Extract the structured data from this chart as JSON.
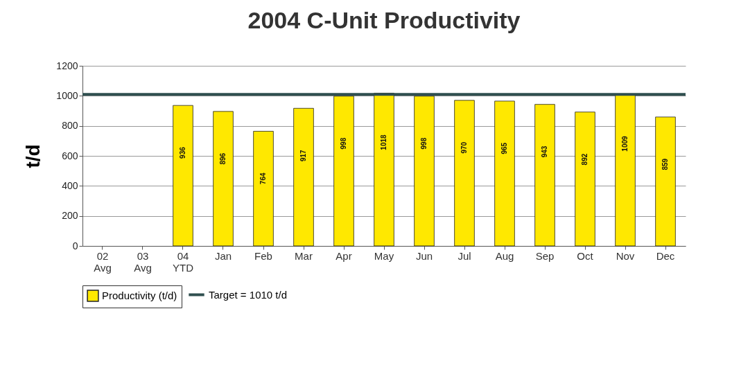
{
  "chart_data": {
    "type": "bar",
    "title": "2004 C-Unit Productivity",
    "ylabel": "t/d",
    "categories": [
      "02 Avg",
      "03 Avg",
      "04 YTD",
      "Jan",
      "Feb",
      "Mar",
      "Apr",
      "May",
      "Jun",
      "Jul",
      "Aug",
      "Sep",
      "Oct",
      "Nov",
      "Dec"
    ],
    "series": [
      {
        "name": "Productivity (t/d)",
        "color": "#ffe800",
        "values": [
          null,
          null,
          936,
          896,
          764,
          917,
          998,
          1018,
          998,
          970,
          965,
          943,
          892,
          1009,
          859
        ]
      }
    ],
    "ref_lines": [
      {
        "axis": "y",
        "value": 1010,
        "label": "Target = 1010 t/d",
        "color": "#2f4f4f"
      }
    ],
    "ylim": [
      0,
      1200
    ],
    "yticks": [
      0,
      200,
      400,
      600,
      800,
      1000,
      1200
    ],
    "grid": "y",
    "data_labels": true,
    "legend": "bottom"
  }
}
